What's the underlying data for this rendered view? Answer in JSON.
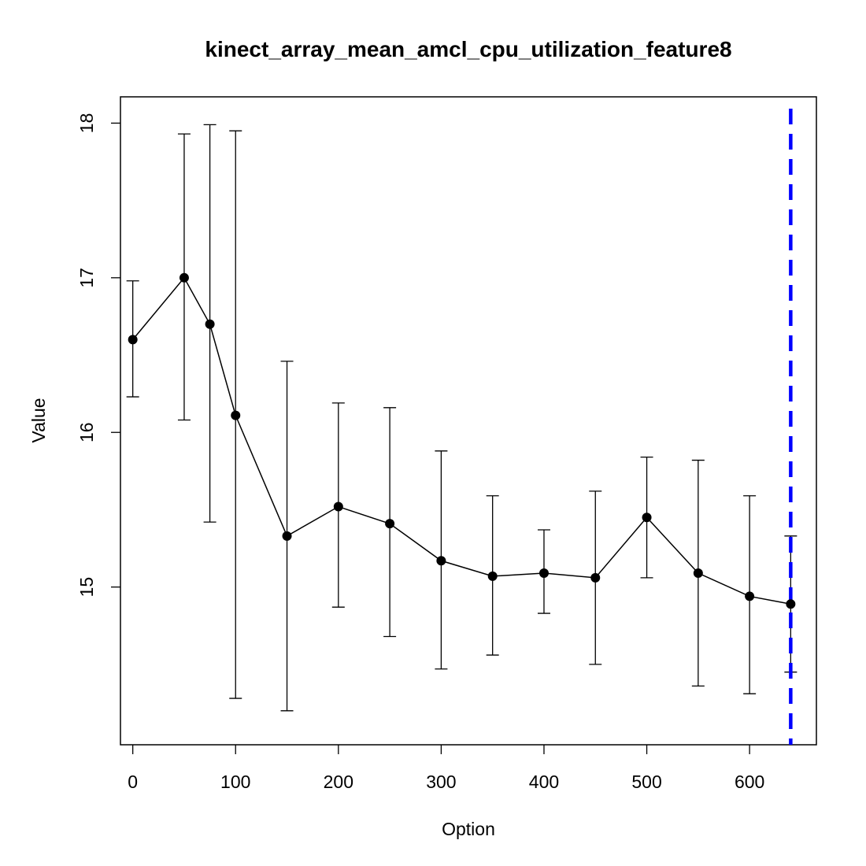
{
  "chart_data": {
    "type": "line",
    "title": "kinect_array_mean_amcl_cpu_utilization_feature8",
    "xlabel": "Option",
    "ylabel": "Value",
    "xlim": [
      -12,
      665
    ],
    "ylim": [
      13.98,
      18.17
    ],
    "x_ticks": [
      0,
      100,
      200,
      300,
      400,
      500,
      600
    ],
    "y_ticks": [
      15,
      16,
      17,
      18
    ],
    "x_tick_labels": [
      "0",
      "100",
      "200",
      "300",
      "400",
      "500",
      "600"
    ],
    "y_tick_labels": [
      "15",
      "16",
      "17",
      "18"
    ],
    "grid": false,
    "legend": "none",
    "series": [
      {
        "x": [
          0,
          50,
          75,
          100,
          150,
          200,
          250,
          300,
          350,
          400,
          450,
          500,
          550,
          600,
          640
        ],
        "y": [
          16.6,
          17.0,
          16.7,
          16.11,
          15.33,
          15.52,
          15.41,
          15.17,
          15.07,
          15.09,
          15.06,
          15.45,
          15.09,
          14.94,
          14.89
        ],
        "err_low": [
          16.23,
          16.08,
          15.42,
          14.28,
          14.2,
          14.87,
          14.68,
          14.47,
          14.56,
          14.83,
          14.5,
          15.06,
          14.36,
          14.31,
          14.45
        ],
        "err_high": [
          16.98,
          17.93,
          17.99,
          17.95,
          16.46,
          16.19,
          16.16,
          15.88,
          15.59,
          15.37,
          15.62,
          15.84,
          15.82,
          15.59,
          15.33
        ]
      }
    ],
    "reference_line": {
      "x": 640,
      "color": "#0000ff",
      "style": "dashed"
    },
    "colors": {
      "series": "#000000",
      "reference": "#0000ff"
    }
  }
}
